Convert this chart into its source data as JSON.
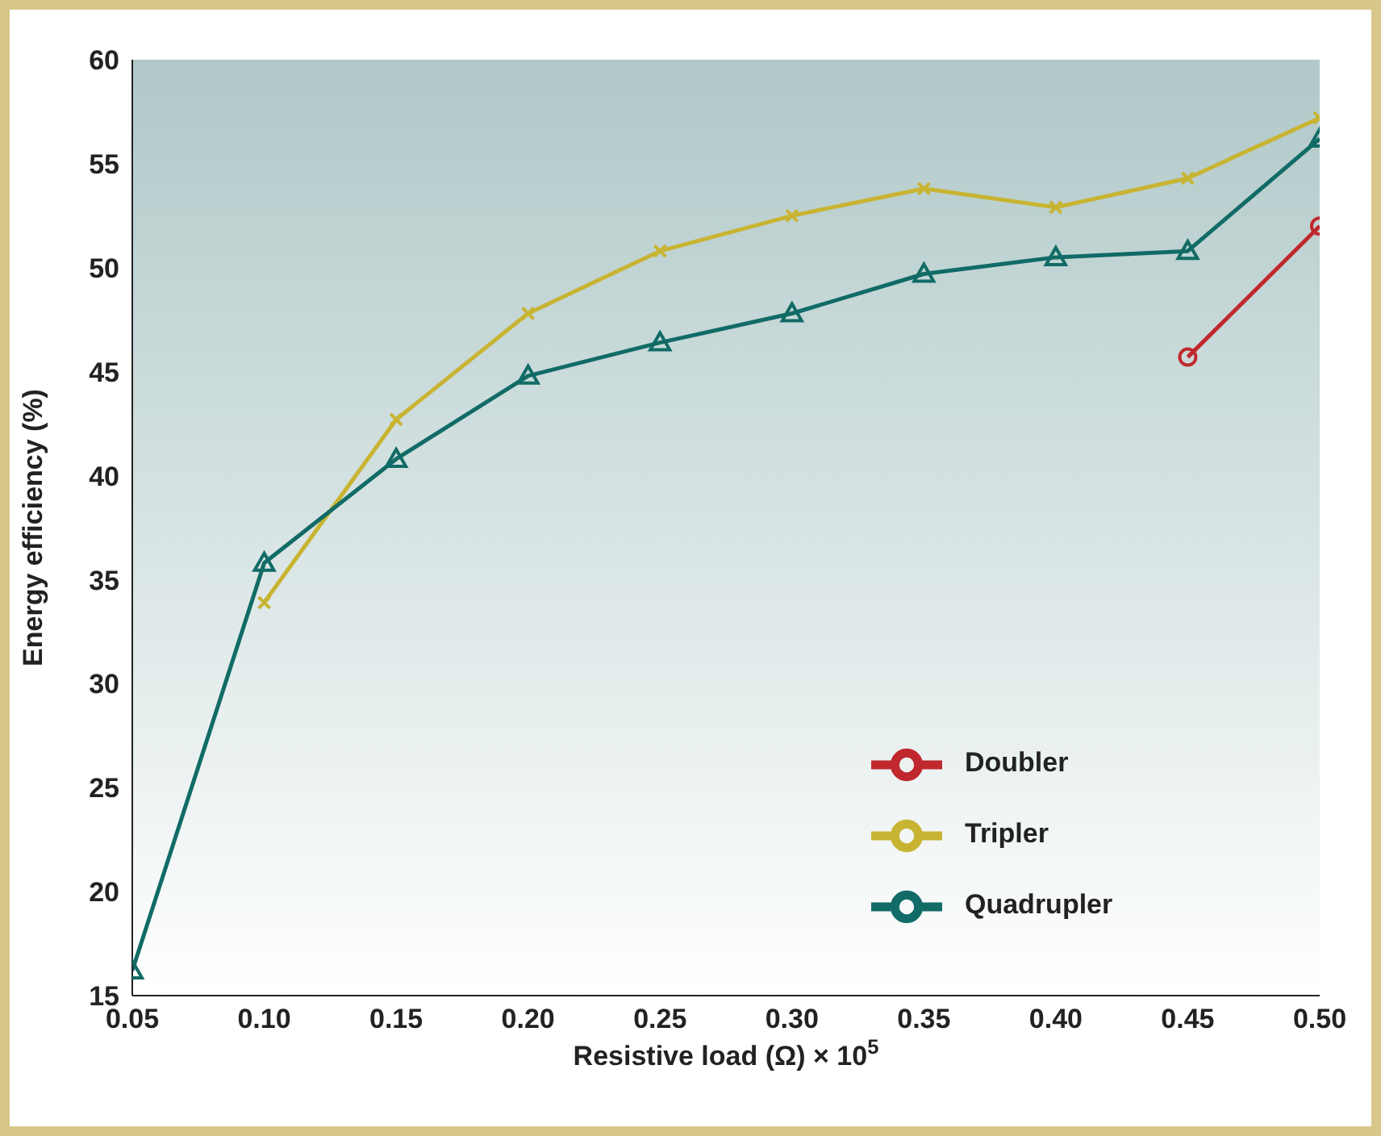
{
  "chart_data": {
    "type": "line",
    "xlabel": "Resistive load (Ω) × 10$^{5}$",
    "ylabel": "Energy efficiency (%)",
    "xlim": [
      0.05,
      0.5
    ],
    "xticks": [
      0.05,
      {
        "value": 0.1,
        "label": "0.10"
      },
      0.15,
      {
        "value": 0.2,
        "label": "0.20"
      },
      0.25,
      {
        "value": 0.3,
        "label": "0.30"
      },
      0.35,
      {
        "value": 0.4,
        "label": "0.40"
      },
      0.45,
      {
        "value": 0.5,
        "label": "0.50"
      }
    ],
    "ylim": [
      15,
      60
    ],
    "yticks": [
      15,
      20,
      25,
      30,
      35,
      40,
      45,
      50,
      55,
      60
    ],
    "grid": false,
    "legend": "bottom right",
    "series": [
      {
        "name": "Doubler",
        "color": "#c0282d",
        "marker": "circle",
        "x": [
          0.45,
          0.5
        ],
        "values": [
          45.7,
          52
        ]
      },
      {
        "name": "Tripler",
        "color": "#c8b432",
        "marker": "cross",
        "x": [
          0.1,
          0.15,
          0.2,
          0.25,
          0.3,
          0.35,
          0.4,
          0.45,
          0.5
        ],
        "values": [
          33.9,
          42.7,
          47.8,
          50.8,
          52.5,
          53.8,
          52.9,
          54.3,
          57.2
        ]
      },
      {
        "name": "Quadrupler",
        "color": "#116b66",
        "marker": "triangle",
        "x": [
          0.05,
          0.1,
          0.15,
          0.2,
          0.25,
          0.3,
          0.35,
          0.4,
          0.45,
          0.5
        ],
        "values": [
          16.2,
          35.8,
          40.8,
          44.8,
          46.4,
          47.8,
          49.7,
          50.5,
          50.8,
          56.2
        ]
      }
    ]
  }
}
